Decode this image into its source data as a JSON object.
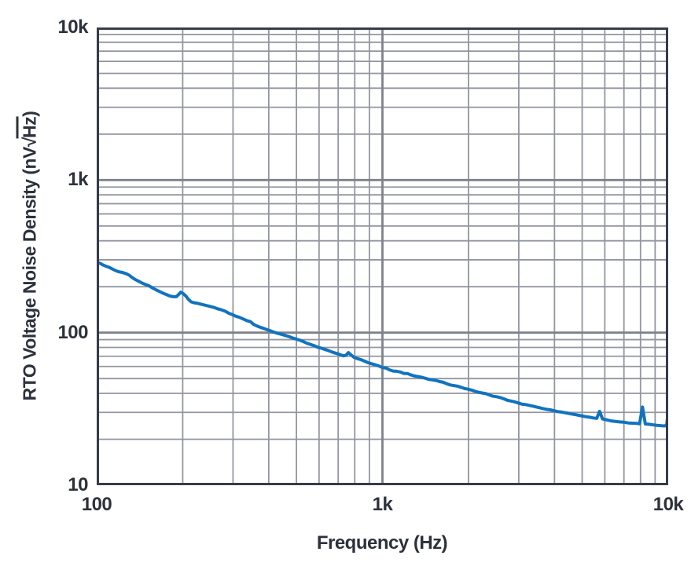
{
  "figure": {
    "background": "#ffffff"
  },
  "chart_data": {
    "type": "line",
    "title": "",
    "xlabel": "Frequency (Hz)",
    "ylabel": "RTO Voltage Noise Density (nV√Hz)",
    "ylabel_parts": {
      "prefix": "RTO Voltage Noise Density (nV",
      "radical": "√",
      "radicand": "Hz",
      "suffix": ")"
    },
    "x_scale": "log",
    "y_scale": "log",
    "xlim": [
      100,
      10000
    ],
    "ylim": [
      10,
      10000
    ],
    "x_ticks": [
      {
        "value": 100,
        "label": "100"
      },
      {
        "value": 1000,
        "label": "1k"
      },
      {
        "value": 10000,
        "label": "10k"
      }
    ],
    "y_ticks": [
      {
        "value": 10000,
        "label": "10k"
      },
      {
        "value": 1000,
        "label": "1k"
      },
      {
        "value": 100,
        "label": "100"
      },
      {
        "value": 10,
        "label": "10"
      }
    ],
    "grid": {
      "major": true,
      "minor": true,
      "box": "full-frame",
      "legend": "none"
    },
    "colors": {
      "line": "#1173bf",
      "grid_minor": "#9296a0",
      "grid_major": "#7d828c",
      "axis": "#363c49",
      "text": "#2d313c",
      "background": "#ffffff"
    },
    "series": [
      {
        "name": "RTO voltage noise density",
        "color": "#1173bf",
        "points": [
          [
            100,
            290
          ],
          [
            103,
            284
          ],
          [
            105,
            278
          ],
          [
            108,
            272
          ],
          [
            111,
            267
          ],
          [
            114,
            260
          ],
          [
            117,
            254
          ],
          [
            120,
            250
          ],
          [
            123,
            248
          ],
          [
            127,
            243
          ],
          [
            130,
            238
          ],
          [
            133,
            230
          ],
          [
            137,
            222
          ],
          [
            141,
            216
          ],
          [
            145,
            210
          ],
          [
            149,
            206
          ],
          [
            153,
            202
          ],
          [
            157,
            196
          ],
          [
            162,
            190
          ],
          [
            166,
            186
          ],
          [
            171,
            181
          ],
          [
            175,
            178
          ],
          [
            180,
            174
          ],
          [
            185,
            172
          ],
          [
            190,
            172
          ],
          [
            193,
            177
          ],
          [
            197,
            184
          ],
          [
            201,
            180
          ],
          [
            205,
            174
          ],
          [
            209,
            166
          ],
          [
            214,
            159
          ],
          [
            219,
            157
          ],
          [
            224,
            156
          ],
          [
            230,
            154
          ],
          [
            237,
            152
          ],
          [
            244,
            150
          ],
          [
            251,
            148
          ],
          [
            258,
            146
          ],
          [
            266,
            143
          ],
          [
            274,
            141
          ],
          [
            282,
            138
          ],
          [
            290,
            134
          ],
          [
            299,
            131
          ],
          [
            307,
            128
          ],
          [
            316,
            126
          ],
          [
            335,
            120
          ],
          [
            345,
            118
          ],
          [
            355,
            113
          ],
          [
            366,
            110
          ],
          [
            376,
            108
          ],
          [
            387,
            106
          ],
          [
            398,
            104
          ],
          [
            410,
            102
          ],
          [
            422,
            100
          ],
          [
            434,
            98.5
          ],
          [
            447,
            97
          ],
          [
            460,
            95.5
          ],
          [
            473,
            94
          ],
          [
            487,
            92
          ],
          [
            501,
            90.5
          ],
          [
            516,
            89
          ],
          [
            531,
            87
          ],
          [
            546,
            85
          ],
          [
            562,
            83.5
          ],
          [
            578,
            82
          ],
          [
            596,
            80
          ],
          [
            613,
            79
          ],
          [
            631,
            77.5
          ],
          [
            649,
            76
          ],
          [
            668,
            74.5
          ],
          [
            684,
            73.5
          ],
          [
            700,
            72.5
          ],
          [
            715,
            71.5
          ],
          [
            730,
            70.5
          ],
          [
            745,
            71
          ],
          [
            760,
            74
          ],
          [
            776,
            71.5
          ],
          [
            794,
            69
          ],
          [
            817,
            67.5
          ],
          [
            841,
            66.5
          ],
          [
            866,
            65
          ],
          [
            891,
            63.5
          ],
          [
            917,
            62.5
          ],
          [
            944,
            61.5
          ],
          [
            971,
            60.5
          ],
          [
            1000,
            59
          ],
          [
            1030,
            58.5
          ],
          [
            1059,
            57
          ],
          [
            1090,
            56
          ],
          [
            1122,
            55.8
          ],
          [
            1155,
            55.2
          ],
          [
            1189,
            54
          ],
          [
            1225,
            53.9
          ],
          [
            1259,
            52.8
          ],
          [
            1296,
            52
          ],
          [
            1334,
            51.5
          ],
          [
            1371,
            51
          ],
          [
            1413,
            50.2
          ],
          [
            1454,
            49.4
          ],
          [
            1496,
            49
          ],
          [
            1540,
            48.6
          ],
          [
            1585,
            47.8
          ],
          [
            1632,
            47.3
          ],
          [
            1679,
            46.2
          ],
          [
            1728,
            45.4
          ],
          [
            1778,
            45
          ],
          [
            1830,
            44.6
          ],
          [
            1884,
            43.8
          ],
          [
            1938,
            43
          ],
          [
            1995,
            42.6
          ],
          [
            2053,
            42
          ],
          [
            2113,
            41.2
          ],
          [
            2174,
            40.6
          ],
          [
            2239,
            40.2
          ],
          [
            2303,
            39.8
          ],
          [
            2371,
            39
          ],
          [
            2440,
            38.3
          ],
          [
            2512,
            38
          ],
          [
            2585,
            37.5
          ],
          [
            2661,
            36.8
          ],
          [
            2738,
            36
          ],
          [
            2818,
            35.6
          ],
          [
            2900,
            35.2
          ],
          [
            2985,
            34.6
          ],
          [
            3072,
            34
          ],
          [
            3162,
            33.8
          ],
          [
            3251,
            33.4
          ],
          [
            3350,
            33
          ],
          [
            3447,
            32.6
          ],
          [
            3548,
            32.2
          ],
          [
            3651,
            31.8
          ],
          [
            3758,
            31.4
          ],
          [
            3867,
            31.2
          ],
          [
            3981,
            30.8
          ],
          [
            4096,
            30.4
          ],
          [
            4217,
            30.2
          ],
          [
            4340,
            29.9
          ],
          [
            4467,
            29.6
          ],
          [
            4597,
            29.3
          ],
          [
            4732,
            29
          ],
          [
            4870,
            28.7
          ],
          [
            5012,
            28.4
          ],
          [
            5158,
            28.1
          ],
          [
            5309,
            27.9
          ],
          [
            5464,
            27.6
          ],
          [
            5623,
            27.4
          ],
          [
            5754,
            30.5
          ],
          [
            5888,
            27.2
          ],
          [
            6095,
            26.8
          ],
          [
            6310,
            26.4
          ],
          [
            6531,
            26.2
          ],
          [
            6761,
            26
          ],
          [
            6998,
            25.9
          ],
          [
            7244,
            25.6
          ],
          [
            7499,
            25.5
          ],
          [
            7762,
            25.4
          ],
          [
            7943,
            25.3
          ],
          [
            8128,
            32.5
          ],
          [
            8318,
            25.2
          ],
          [
            8511,
            25.1
          ],
          [
            8710,
            25
          ],
          [
            8913,
            24.8
          ],
          [
            9120,
            24.7
          ],
          [
            9333,
            24.6
          ],
          [
            9550,
            24.5
          ],
          [
            9772,
            24.5
          ],
          [
            9886,
            25
          ],
          [
            10000,
            31
          ]
        ]
      }
    ]
  }
}
